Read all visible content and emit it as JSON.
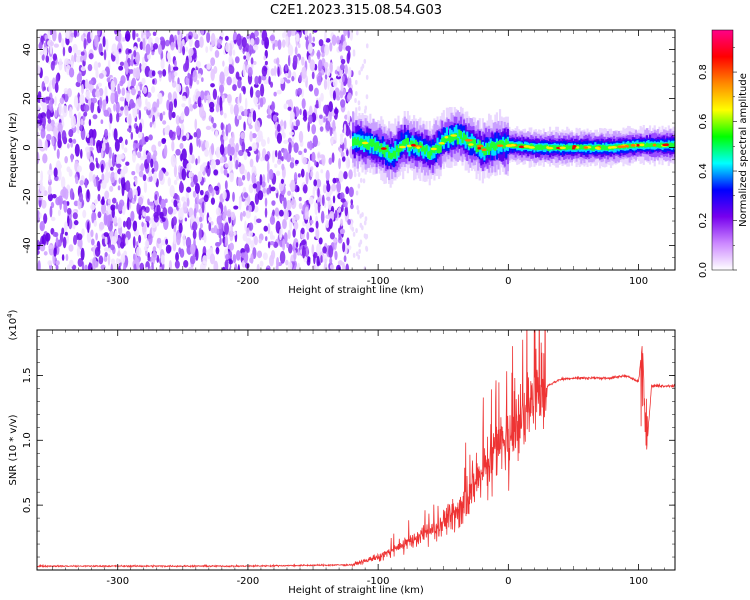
{
  "title": "C2E1.2023.315.08.54.G03",
  "chart_data": [
    {
      "type": "heatmap",
      "xlabel": "Height of straight line (km)",
      "ylabel": "Frequency (Hz)",
      "xlim": [
        -362,
        128
      ],
      "ylim": [
        -50,
        48
      ],
      "xticks": [
        -300,
        -200,
        -100,
        0,
        100
      ],
      "yticks": [
        -40,
        -20,
        0,
        20,
        40
      ],
      "grid": false,
      "colorbar": {
        "label": "Normalized spectral amplitude",
        "range": [
          0,
          0.97
        ],
        "ticks": [
          0.0,
          0.2,
          0.4,
          0.6,
          0.8
        ],
        "colors": [
          "#ffffff",
          "#cc88ff",
          "#7700ee",
          "#0000ff",
          "#00ffff",
          "#00ff00",
          "#ffff00",
          "#ff8800",
          "#ff0000",
          "#ff0088"
        ]
      },
      "noise_region_x": [
        -362,
        -120
      ],
      "ridge": {
        "x": [
          -120,
          -110,
          -100,
          -90,
          -80,
          -70,
          -60,
          -50,
          -40,
          -30,
          -20,
          -10,
          0,
          20,
          40,
          60,
          80,
          100,
          128
        ],
        "y": [
          3,
          2,
          0,
          -3,
          2,
          0,
          -2,
          3,
          5,
          2,
          -1,
          1,
          1,
          0,
          0,
          0,
          0,
          1,
          1
        ]
      }
    },
    {
      "type": "line",
      "xlabel": "Height of straight line (km)",
      "ylabel": "SNR (10 * v/v)",
      "y_multiplier": "(x10",
      "y_multiplier_exp": "4",
      "y_multiplier_close": ")",
      "xlim": [
        -362,
        128
      ],
      "ylim": [
        0,
        1.85
      ],
      "xticks": [
        -300,
        -200,
        -100,
        0,
        100
      ],
      "yticks": [
        0.5,
        1.0,
        1.5
      ],
      "ytick_labels": [
        "0.5",
        "1.0",
        "1.5"
      ],
      "color": "#ee3333",
      "series": [
        {
          "x": [
            -362,
            -300,
            -200,
            -120,
            -100,
            -80,
            -60,
            -40,
            -30,
            -20,
            -10,
            0,
            10,
            20,
            30,
            40,
            50,
            60,
            80,
            90,
            100,
            103,
            106,
            110,
            128
          ],
          "y": [
            0.03,
            0.03,
            0.03,
            0.04,
            0.1,
            0.2,
            0.3,
            0.45,
            0.6,
            0.75,
            0.9,
            1.0,
            1.15,
            1.35,
            1.42,
            1.47,
            1.48,
            1.48,
            1.48,
            1.5,
            1.45,
            1.75,
            0.9,
            1.42,
            1.42
          ]
        }
      ]
    }
  ]
}
